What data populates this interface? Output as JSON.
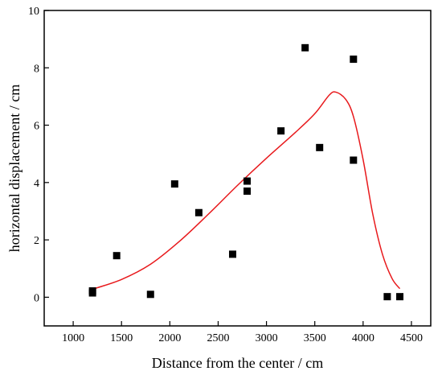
{
  "chart_data": {
    "type": "scatter",
    "xlabel": "Distance from the center / cm",
    "ylabel": "horizontal displacement / cm",
    "xlim": [
      700,
      4700
    ],
    "ylim": [
      -1,
      10
    ],
    "x_ticks": [
      1000,
      1500,
      2000,
      2500,
      3000,
      3500,
      4000,
      4500
    ],
    "y_ticks": [
      0,
      2,
      4,
      6,
      8,
      10
    ],
    "grid": false,
    "legend": "none",
    "series": [
      {
        "type": "scatter",
        "marker": "square",
        "color": "#000000",
        "points": [
          {
            "x": 1200,
            "y": 0.15
          },
          {
            "x": 1200,
            "y": 0.22
          },
          {
            "x": 1450,
            "y": 1.45
          },
          {
            "x": 1800,
            "y": 0.1
          },
          {
            "x": 2050,
            "y": 3.95
          },
          {
            "x": 2300,
            "y": 2.95
          },
          {
            "x": 2650,
            "y": 1.5
          },
          {
            "x": 2800,
            "y": 4.05
          },
          {
            "x": 2800,
            "y": 3.7
          },
          {
            "x": 3150,
            "y": 5.8
          },
          {
            "x": 3400,
            "y": 8.7
          },
          {
            "x": 3550,
            "y": 5.22
          },
          {
            "x": 3900,
            "y": 8.3
          },
          {
            "x": 3900,
            "y": 4.78
          },
          {
            "x": 4250,
            "y": 0.02
          },
          {
            "x": 4380,
            "y": 0.02
          }
        ]
      },
      {
        "type": "line",
        "smooth": true,
        "color": "#e8191c",
        "points": [
          {
            "x": 1200,
            "y": 0.28
          },
          {
            "x": 1500,
            "y": 0.62
          },
          {
            "x": 1800,
            "y": 1.15
          },
          {
            "x": 2100,
            "y": 1.95
          },
          {
            "x": 2400,
            "y": 2.9
          },
          {
            "x": 2700,
            "y": 3.9
          },
          {
            "x": 3000,
            "y": 4.85
          },
          {
            "x": 3300,
            "y": 5.75
          },
          {
            "x": 3500,
            "y": 6.4
          },
          {
            "x": 3650,
            "y": 7.05
          },
          {
            "x": 3720,
            "y": 7.15
          },
          {
            "x": 3820,
            "y": 6.9
          },
          {
            "x": 3900,
            "y": 6.3
          },
          {
            "x": 4000,
            "y": 4.8
          },
          {
            "x": 4100,
            "y": 2.9
          },
          {
            "x": 4200,
            "y": 1.5
          },
          {
            "x": 4300,
            "y": 0.65
          },
          {
            "x": 4380,
            "y": 0.3
          }
        ]
      }
    ]
  }
}
